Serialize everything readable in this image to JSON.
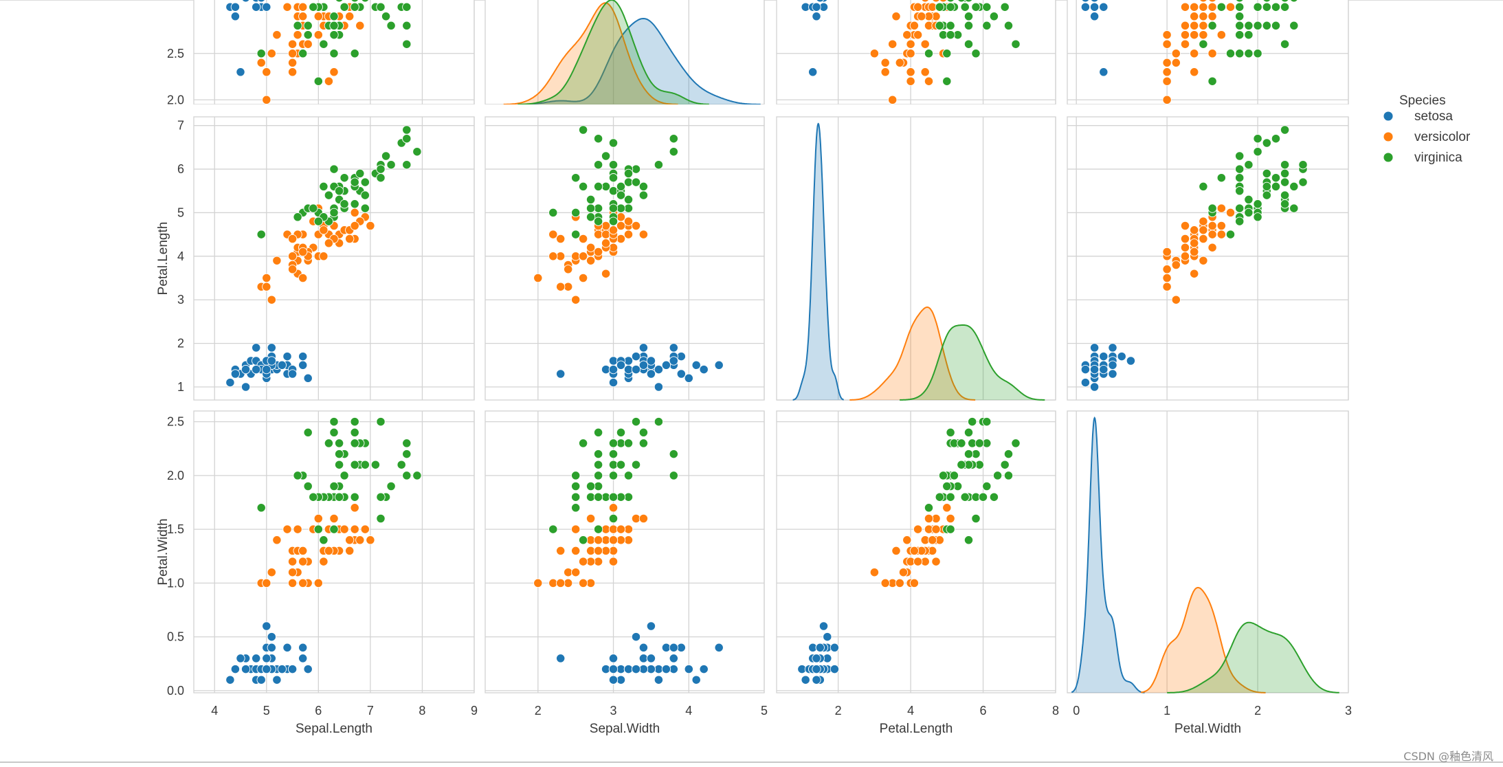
{
  "colors": {
    "setosa": "#1f77b4",
    "versicolor": "#ff7f0e",
    "virginica": "#2ca02c",
    "grid": "#d3d3d3",
    "text": "#3a3a3a"
  },
  "watermark": "CSDN @釉色清风",
  "chart_data": {
    "type": "scatter",
    "title": "",
    "legend": {
      "title": "Species",
      "placement": "right",
      "entries": [
        "setosa",
        "versicolor",
        "virginica"
      ]
    },
    "grid": true,
    "rows": [
      {
        "variable": "Sepal.Width",
        "ylabel": "",
        "ylim": [
          1.95,
          3.15
        ],
        "yticks": [
          2.0,
          2.5
        ],
        "clipped_top": true
      },
      {
        "variable": "Petal.Length",
        "ylabel": "Petal.Length",
        "ylim": [
          0.7,
          7.2
        ],
        "yticks": [
          1,
          2,
          3,
          4,
          5,
          6,
          7
        ]
      },
      {
        "variable": "Petal.Width",
        "ylabel": "Petal.Width",
        "ylim": [
          -0.02,
          2.6
        ],
        "yticks": [
          0.0,
          0.5,
          1.0,
          1.5,
          2.0,
          2.5
        ]
      }
    ],
    "columns": [
      {
        "variable": "Sepal.Length",
        "xlabel": "Sepal.Length",
        "xlim": [
          3.6,
          9.0
        ],
        "xticks": [
          4,
          5,
          6,
          7,
          8,
          9
        ]
      },
      {
        "variable": "Sepal.Width",
        "xlabel": "Sepal.Width",
        "xlim": [
          1.3,
          5.0
        ],
        "xticks": [
          2,
          3,
          4,
          5
        ]
      },
      {
        "variable": "Petal.Length",
        "xlabel": "Petal.Length",
        "xlim": [
          0.3,
          8.0
        ],
        "xticks": [
          2,
          4,
          6,
          8
        ]
      },
      {
        "variable": "Petal.Width",
        "xlabel": "Petal.Width",
        "xlim": [
          -0.1,
          3.0
        ],
        "xticks": [
          0,
          1,
          2,
          3
        ]
      }
    ],
    "species_data": {
      "setosa": {
        "sepal_length": [
          5.1,
          4.9,
          4.7,
          4.6,
          5.0,
          5.4,
          4.6,
          5.0,
          4.4,
          4.9,
          5.4,
          4.8,
          4.8,
          4.3,
          5.8,
          5.7,
          5.4,
          5.1,
          5.7,
          5.1,
          5.4,
          5.1,
          4.6,
          5.1,
          4.8,
          5.0,
          5.0,
          5.2,
          5.2,
          4.7,
          4.8,
          5.4,
          5.2,
          5.5,
          4.9,
          5.0,
          5.5,
          4.9,
          4.4,
          5.1,
          5.0,
          4.5,
          4.4,
          5.0,
          5.1,
          4.8,
          5.1,
          4.6,
          5.3,
          5.0
        ],
        "sepal_width": [
          3.5,
          3.0,
          3.2,
          3.1,
          3.6,
          3.9,
          3.4,
          3.4,
          2.9,
          3.1,
          3.7,
          3.4,
          3.0,
          3.0,
          4.0,
          4.4,
          3.9,
          3.5,
          3.8,
          3.8,
          3.4,
          3.7,
          3.6,
          3.3,
          3.4,
          3.0,
          3.4,
          3.5,
          3.4,
          3.2,
          3.1,
          3.4,
          4.1,
          4.2,
          3.1,
          3.2,
          3.5,
          3.6,
          3.0,
          3.4,
          3.5,
          2.3,
          3.2,
          3.5,
          3.8,
          3.0,
          3.8,
          3.2,
          3.7,
          3.3
        ],
        "petal_length": [
          1.4,
          1.4,
          1.3,
          1.5,
          1.4,
          1.7,
          1.4,
          1.5,
          1.4,
          1.5,
          1.5,
          1.6,
          1.4,
          1.1,
          1.2,
          1.5,
          1.3,
          1.4,
          1.7,
          1.5,
          1.7,
          1.5,
          1.0,
          1.7,
          1.9,
          1.6,
          1.6,
          1.5,
          1.4,
          1.6,
          1.6,
          1.5,
          1.5,
          1.4,
          1.5,
          1.2,
          1.3,
          1.4,
          1.3,
          1.5,
          1.3,
          1.3,
          1.3,
          1.6,
          1.9,
          1.4,
          1.6,
          1.4,
          1.5,
          1.4
        ],
        "petal_width": [
          0.2,
          0.2,
          0.2,
          0.2,
          0.2,
          0.4,
          0.3,
          0.2,
          0.2,
          0.1,
          0.2,
          0.2,
          0.1,
          0.1,
          0.2,
          0.4,
          0.4,
          0.3,
          0.3,
          0.3,
          0.2,
          0.4,
          0.2,
          0.5,
          0.2,
          0.2,
          0.4,
          0.2,
          0.2,
          0.2,
          0.2,
          0.4,
          0.1,
          0.2,
          0.2,
          0.2,
          0.2,
          0.1,
          0.2,
          0.2,
          0.3,
          0.3,
          0.2,
          0.6,
          0.4,
          0.3,
          0.2,
          0.2,
          0.2,
          0.2
        ]
      },
      "versicolor": {
        "sepal_length": [
          7.0,
          6.4,
          6.9,
          5.5,
          6.5,
          5.7,
          6.3,
          4.9,
          6.6,
          5.2,
          5.0,
          5.9,
          6.0,
          6.1,
          5.6,
          6.7,
          5.6,
          5.8,
          6.2,
          5.6,
          5.9,
          6.1,
          6.3,
          6.1,
          6.4,
          6.6,
          6.8,
          6.7,
          6.0,
          5.7,
          5.5,
          5.5,
          5.8,
          6.0,
          5.4,
          6.0,
          6.7,
          6.3,
          5.6,
          5.5,
          5.5,
          6.1,
          5.8,
          5.0,
          5.6,
          5.7,
          5.7,
          6.2,
          5.1,
          5.7
        ],
        "sepal_width": [
          3.2,
          3.2,
          3.1,
          2.3,
          2.8,
          2.8,
          3.3,
          2.4,
          2.9,
          2.7,
          2.0,
          3.0,
          2.2,
          2.9,
          2.9,
          3.1,
          3.0,
          2.7,
          2.2,
          2.5,
          3.2,
          2.8,
          2.5,
          2.8,
          2.9,
          3.0,
          2.8,
          3.0,
          2.9,
          2.6,
          2.4,
          2.4,
          2.7,
          2.7,
          3.0,
          3.4,
          3.1,
          2.3,
          3.0,
          2.5,
          2.6,
          3.0,
          2.6,
          2.3,
          2.7,
          3.0,
          2.9,
          2.9,
          2.5,
          2.8
        ],
        "petal_length": [
          4.7,
          4.5,
          4.9,
          4.0,
          4.6,
          4.5,
          4.7,
          3.3,
          4.6,
          3.9,
          3.5,
          4.2,
          4.0,
          4.7,
          3.6,
          4.4,
          4.5,
          4.1,
          4.5,
          3.9,
          4.8,
          4.0,
          4.9,
          4.7,
          4.3,
          4.4,
          4.8,
          5.0,
          4.5,
          3.5,
          3.8,
          3.7,
          3.9,
          5.1,
          4.5,
          4.5,
          4.7,
          4.4,
          4.1,
          4.0,
          4.4,
          4.6,
          4.0,
          3.3,
          4.2,
          4.2,
          4.2,
          4.3,
          3.0,
          4.1
        ],
        "petal_width": [
          1.4,
          1.5,
          1.5,
          1.3,
          1.5,
          1.3,
          1.6,
          1.0,
          1.3,
          1.4,
          1.0,
          1.5,
          1.0,
          1.4,
          1.3,
          1.4,
          1.5,
          1.0,
          1.5,
          1.1,
          1.8,
          1.3,
          1.5,
          1.2,
          1.3,
          1.4,
          1.4,
          1.7,
          1.5,
          1.0,
          1.1,
          1.0,
          1.2,
          1.6,
          1.5,
          1.6,
          1.5,
          1.3,
          1.3,
          1.3,
          1.2,
          1.4,
          1.2,
          1.0,
          1.3,
          1.2,
          1.3,
          1.3,
          1.1,
          1.3
        ]
      },
      "virginica": {
        "sepal_length": [
          6.3,
          5.8,
          7.1,
          6.3,
          6.5,
          7.6,
          4.9,
          7.3,
          6.7,
          7.2,
          6.5,
          6.4,
          6.8,
          5.7,
          5.8,
          6.4,
          6.5,
          7.7,
          7.7,
          6.0,
          6.9,
          5.6,
          7.7,
          6.3,
          6.7,
          7.2,
          6.2,
          6.1,
          6.4,
          7.2,
          7.4,
          7.9,
          6.4,
          6.3,
          6.1,
          7.7,
          6.3,
          6.4,
          6.0,
          6.9,
          6.7,
          6.9,
          5.8,
          6.8,
          6.7,
          6.7,
          6.3,
          6.5,
          6.2,
          5.9
        ],
        "sepal_width": [
          3.3,
          2.7,
          3.0,
          2.9,
          3.0,
          3.0,
          2.5,
          2.9,
          2.5,
          3.6,
          3.2,
          2.7,
          3.0,
          2.5,
          2.8,
          3.2,
          3.0,
          3.8,
          2.6,
          2.2,
          3.2,
          2.8,
          2.8,
          2.7,
          3.3,
          3.2,
          2.8,
          3.0,
          2.8,
          3.0,
          2.8,
          3.8,
          2.8,
          2.8,
          2.6,
          3.0,
          3.4,
          3.1,
          3.0,
          3.1,
          3.1,
          3.1,
          2.7,
          3.2,
          3.3,
          3.0,
          2.5,
          3.0,
          3.4,
          3.0
        ],
        "petal_length": [
          6.0,
          5.1,
          5.9,
          5.6,
          5.8,
          6.6,
          4.5,
          6.3,
          5.8,
          6.1,
          5.1,
          5.3,
          5.5,
          5.0,
          5.1,
          5.3,
          5.5,
          6.7,
          6.9,
          5.0,
          5.7,
          4.9,
          6.7,
          4.9,
          5.7,
          6.0,
          4.8,
          4.9,
          5.6,
          5.8,
          6.1,
          6.4,
          5.6,
          5.1,
          5.6,
          6.1,
          5.6,
          5.5,
          4.8,
          5.4,
          5.6,
          5.1,
          5.1,
          5.9,
          5.7,
          5.2,
          5.0,
          5.2,
          5.4,
          5.1
        ],
        "petal_width": [
          2.5,
          1.9,
          2.1,
          1.8,
          2.2,
          2.1,
          1.7,
          1.8,
          1.8,
          2.5,
          2.0,
          1.9,
          2.1,
          2.0,
          2.4,
          2.3,
          1.8,
          2.2,
          2.3,
          1.5,
          2.3,
          2.0,
          2.0,
          1.8,
          2.1,
          1.8,
          1.8,
          1.8,
          2.1,
          1.6,
          1.9,
          2.0,
          2.2,
          1.5,
          1.4,
          2.3,
          2.4,
          1.8,
          1.8,
          2.1,
          2.4,
          2.3,
          1.9,
          2.3,
          2.5,
          2.3,
          1.9,
          2.0,
          2.3,
          1.8
        ]
      }
    }
  }
}
